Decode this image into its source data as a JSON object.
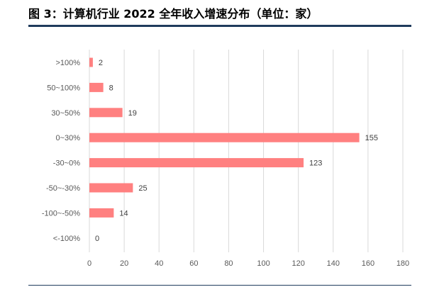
{
  "title": "图 3：计算机行业 2022 全年收入增速分布（单位：家）",
  "colors": {
    "bar": "#ff8080",
    "grid": "#d9d9d9",
    "rule": "#1f3b5c"
  },
  "chart_data": {
    "type": "bar",
    "orientation": "horizontal",
    "categories": [
      ">100%",
      "50~100%",
      "30~50%",
      "0~30%",
      "-30~0%",
      "-50~-30%",
      "-100~-50%",
      "<-100%"
    ],
    "values": [
      2,
      8,
      19,
      155,
      123,
      25,
      14,
      0
    ],
    "xlim": [
      0,
      180
    ],
    "xticks": [
      0,
      20,
      40,
      60,
      80,
      100,
      120,
      140,
      160,
      180
    ],
    "grid": true,
    "legend": "none"
  }
}
